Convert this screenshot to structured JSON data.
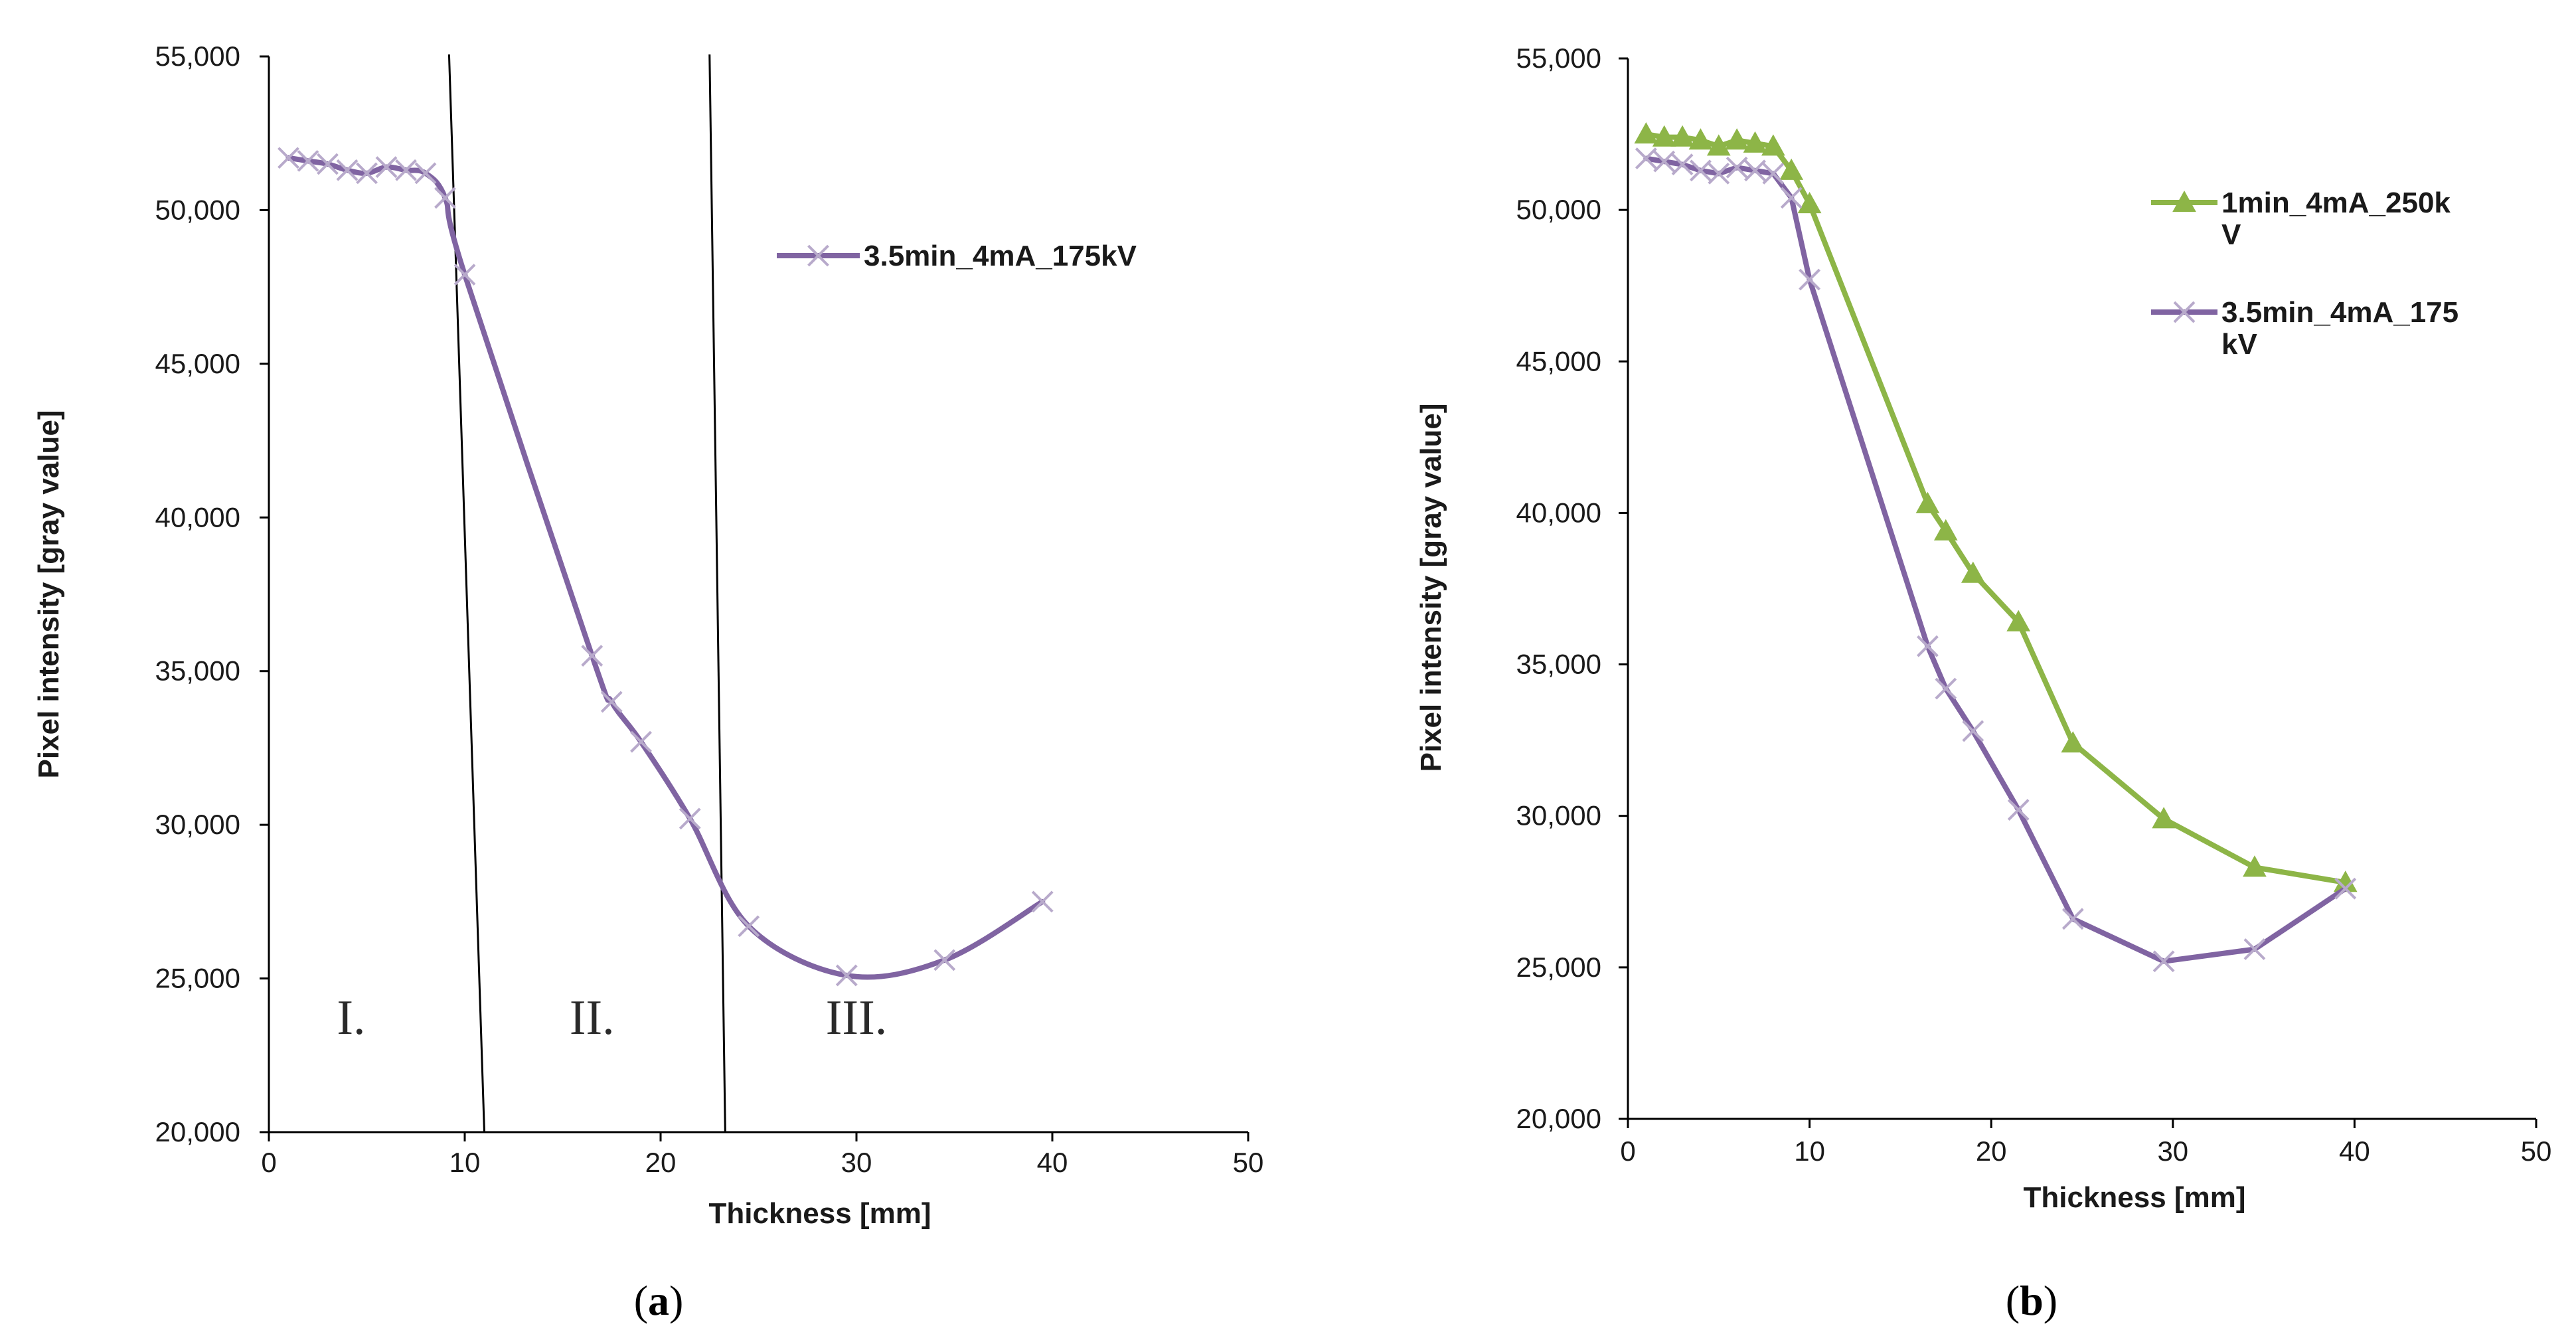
{
  "chart_data": [
    {
      "panel": "a",
      "type": "line",
      "caption_parts": [
        "(",
        "a",
        ")"
      ],
      "title": "",
      "xlabel": "Thickness [mm]",
      "ylabel": "Pixel intensity [gray value]",
      "xlim": [
        0,
        50
      ],
      "ylim": [
        20000,
        55000
      ],
      "xticks": [
        0,
        10,
        20,
        30,
        40,
        50
      ],
      "yticks": [
        20000,
        25000,
        30000,
        35000,
        40000,
        45000,
        50000,
        55000
      ],
      "xtick_labels": [
        "0",
        "10",
        "20",
        "30",
        "40",
        "50"
      ],
      "ytick_labels": [
        "20,000",
        "25,000",
        "30,000",
        "35,000",
        "40,000",
        "45,000",
        "50,000",
        "55,000"
      ],
      "grid": false,
      "legend_position": "top-right",
      "series": [
        {
          "name": "3.5min_4mA_175kV",
          "legend_lines": [
            "3.5min_4mA_175kV"
          ],
          "color": "#8064a2",
          "marker": "x",
          "smooth": true,
          "x": [
            1,
            2,
            3,
            4,
            5,
            6,
            7,
            8,
            9,
            10,
            16.5,
            17.5,
            19,
            21.5,
            24.5,
            29.5,
            34.5,
            39.5
          ],
          "y": [
            51700,
            51600,
            51500,
            51300,
            51200,
            51400,
            51300,
            51200,
            50400,
            47900,
            35500,
            34000,
            32700,
            30200,
            26700,
            25100,
            25600,
            27500
          ]
        }
      ],
      "divider_lines": [
        {
          "x_top": 9.2,
          "x_bottom": 11
        },
        {
          "x_top": 22.5,
          "x_bottom": 23.3
        }
      ],
      "region_labels": [
        {
          "text": "I.",
          "x": 4.2,
          "y": 23200
        },
        {
          "text": "II.",
          "x": 16.5,
          "y": 23200
        },
        {
          "text": "III.",
          "x": 30,
          "y": 23200
        }
      ]
    },
    {
      "panel": "b",
      "type": "line",
      "caption_parts": [
        "(",
        "b",
        ")"
      ],
      "title": "",
      "xlabel": "Thickness [mm]",
      "ylabel": "Pixel intensity [gray value]",
      "xlim": [
        0,
        50
      ],
      "ylim": [
        20000,
        55000
      ],
      "xticks": [
        0,
        10,
        20,
        30,
        40,
        50
      ],
      "yticks": [
        20000,
        25000,
        30000,
        35000,
        40000,
        45000,
        50000,
        55000
      ],
      "xtick_labels": [
        "0",
        "10",
        "20",
        "30",
        "40",
        "50"
      ],
      "ytick_labels": [
        "20,000",
        "25,000",
        "30,000",
        "35,000",
        "40,000",
        "45,000",
        "50,000",
        "55,000"
      ],
      "grid": false,
      "legend_position": "top-right",
      "series": [
        {
          "name": "1min_4mA_250kV",
          "legend_lines": [
            "1min_4mA_250k",
            "V"
          ],
          "color": "#8db547",
          "marker": "triangle",
          "smooth": false,
          "x": [
            1,
            2,
            3,
            4,
            5,
            6,
            7,
            8,
            9,
            10,
            16.5,
            17.5,
            19,
            21.5,
            24.5,
            29.5,
            34.5,
            39.5
          ],
          "y": [
            52500,
            52400,
            52400,
            52300,
            52100,
            52300,
            52200,
            52100,
            51300,
            50200,
            40300,
            39400,
            38000,
            36400,
            32400,
            29900,
            28300,
            27800
          ]
        },
        {
          "name": "3.5min_4mA_175kV",
          "legend_lines": [
            "3.5min_4mA_175",
            "kV"
          ],
          "color": "#8064a2",
          "marker": "x",
          "smooth": false,
          "x": [
            1,
            2,
            3,
            4,
            5,
            6,
            7,
            8,
            9,
            10,
            16.5,
            17.5,
            19,
            21.5,
            24.5,
            29.5,
            34.5,
            39.5
          ],
          "y": [
            51700,
            51600,
            51500,
            51300,
            51200,
            51400,
            51300,
            51200,
            50400,
            47700,
            35600,
            34200,
            32800,
            30200,
            26600,
            25200,
            25600,
            27600
          ]
        }
      ]
    }
  ]
}
